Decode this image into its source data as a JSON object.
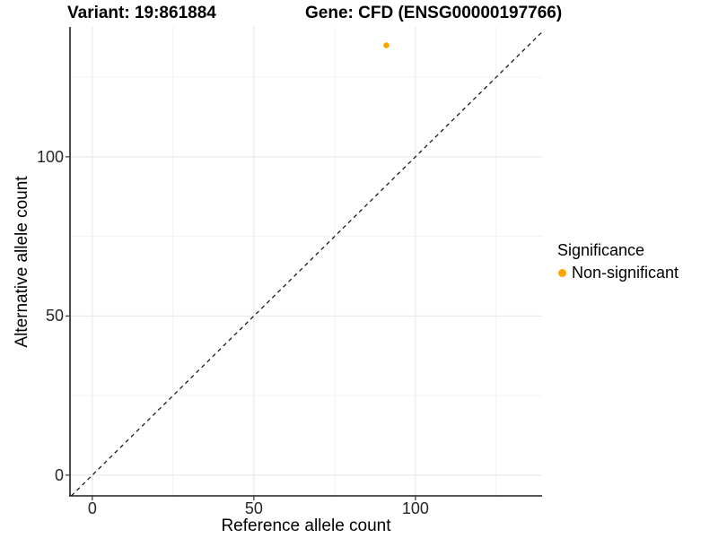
{
  "chart_data": {
    "type": "scatter",
    "title_left": "Variant: 19:861884",
    "title_right": "Gene: CFD (ENSG00000197766)",
    "xlabel": "Reference allele count",
    "ylabel": "Alternative allele count",
    "xlim": [
      -6.9,
      139.2
    ],
    "ylim": [
      -6.5,
      140.8
    ],
    "x_ticks_major": [
      0,
      50,
      100
    ],
    "x_ticks_minor": [
      25,
      75,
      125
    ],
    "y_ticks_major": [
      0,
      50,
      100
    ],
    "y_ticks_minor": [
      25,
      75,
      125
    ],
    "grid": "major+minor",
    "legend_position": "right",
    "legend": {
      "title": "Significance",
      "items": [
        {
          "label": "Non-significant",
          "color": "#FFA500",
          "marker": "circle"
        }
      ]
    },
    "series": [
      {
        "name": "Non-significant",
        "color": "#FFA500",
        "points": [
          {
            "x": 91,
            "y": 135
          }
        ]
      }
    ],
    "reference_line": {
      "kind": "abline",
      "slope": 1,
      "intercept": 0,
      "linetype": "dashed",
      "color": "#1a1a1a"
    }
  },
  "style": {
    "grid_major_color": "#e5e5e5",
    "grid_minor_color": "#f2f2f2",
    "axis_line_color": "#1f1f1f",
    "tick_mark_color": "#333333",
    "tick_label_color": "#262626",
    "point_color": "#FFA500"
  }
}
